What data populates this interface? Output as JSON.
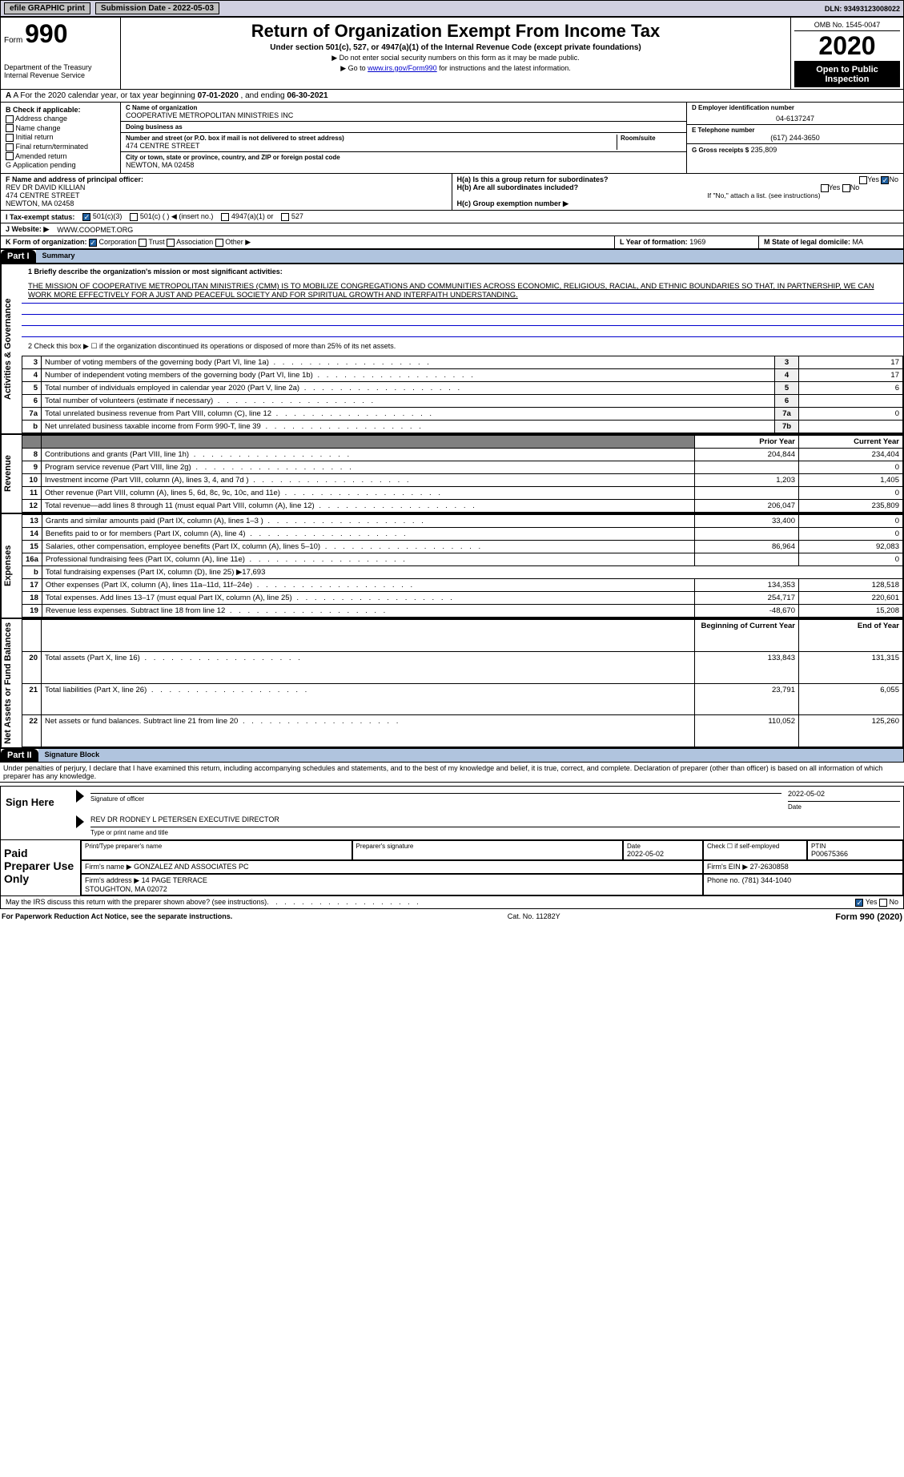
{
  "top": {
    "efile": "efile GRAPHIC print",
    "submission_label": "Submission Date - 2022-05-03",
    "dln": "DLN: 93493123008022"
  },
  "header": {
    "form_label": "Form",
    "form_no": "990",
    "dept": "Department of the Treasury\nInternal Revenue Service",
    "title": "Return of Organization Exempt From Income Tax",
    "subtitle": "Under section 501(c), 527, or 4947(a)(1) of the Internal Revenue Code (except private foundations)",
    "note1": "▶ Do not enter social security numbers on this form as it may be made public.",
    "note2_prefix": "▶ Go to ",
    "note2_link": "www.irs.gov/Form990",
    "note2_suffix": " for instructions and the latest information.",
    "omb": "OMB No. 1545-0047",
    "year": "2020",
    "open": "Open to Public Inspection"
  },
  "period": {
    "prefix": "A For the 2020 calendar year, or tax year beginning ",
    "begin": "07-01-2020",
    "mid": " , and ending ",
    "end": "06-30-2021"
  },
  "box_b": {
    "title": "B Check if applicable:",
    "items": [
      "Address change",
      "Name change",
      "Initial return",
      "Final return/terminated",
      "Amended return",
      "Application pending"
    ],
    "application_note": "G"
  },
  "box_c": {
    "name_label": "C Name of organization",
    "name": "COOPERATIVE METROPOLITAN MINISTRIES INC",
    "dba_label": "Doing business as",
    "dba": "",
    "street_label": "Number and street (or P.O. box if mail is not delivered to street address)",
    "room_label": "Room/suite",
    "street": "474 CENTRE STREET",
    "city_label": "City or town, state or province, country, and ZIP or foreign postal code",
    "city": "NEWTON, MA  02458"
  },
  "box_d": {
    "ein_label": "D Employer identification number",
    "ein": "04-6137247",
    "tel_label": "E Telephone number",
    "tel": "(617) 244-3650",
    "gross_label": "G Gross receipts $",
    "gross": "235,809"
  },
  "box_f": {
    "label": "F Name and address of principal officer:",
    "name": "REV DR DAVID KILLIAN",
    "street": "474 CENTRE STREET",
    "city": "NEWTON, MA  02458"
  },
  "box_h": {
    "a_label": "H(a)  Is this a group return for subordinates?",
    "a_yes": "Yes",
    "a_no": "No",
    "b_label": "H(b)  Are all subordinates included?",
    "b_yes": "Yes",
    "b_no": "No",
    "b_note": "If \"No,\" attach a list. (see instructions)",
    "c_label": "H(c)  Group exemption number ▶"
  },
  "box_i": {
    "label": "I   Tax-exempt status:",
    "opts": [
      "501(c)(3)",
      "501(c) (  ) ◀ (insert no.)",
      "4947(a)(1) or",
      "527"
    ]
  },
  "box_j": {
    "label": "J   Website: ▶",
    "value": "WWW.COOPMET.ORG"
  },
  "box_k": {
    "label": "K Form of organization:",
    "opts": [
      "Corporation",
      "Trust",
      "Association",
      "Other ▶"
    ]
  },
  "box_l": {
    "label": "L Year of formation:",
    "value": "1969"
  },
  "box_m": {
    "label": "M State of legal domicile:",
    "value": "MA"
  },
  "part1": {
    "tag": "Part I",
    "title": "Summary",
    "mission_label": "1  Briefly describe the organization's mission or most significant activities:",
    "mission": "THE MISSION OF COOPERATIVE METROPOLITAN MINISTRIES (CMM) IS TO MOBILIZE CONGREGATIONS AND COMMUNITIES ACROSS ECONOMIC, RELIGIOUS, RACIAL, AND ETHNIC BOUNDARIES SO THAT, IN PARTNERSHIP, WE CAN WORK MORE EFFECTIVELY FOR A JUST AND PEACEFUL SOCIETY AND FOR SPIRITUAL GROWTH AND INTERFAITH UNDERSTANDING.",
    "line2": "2   Check this box ▶ ☐ if the organization discontinued its operations or disposed of more than 25% of its net assets.",
    "sections": {
      "gov": "Activities & Governance",
      "rev": "Revenue",
      "exp": "Expenses",
      "net": "Net Assets or Fund Balances"
    },
    "rows_gov": [
      {
        "n": "3",
        "t": "Number of voting members of the governing body (Part VI, line 1a)",
        "l": "3",
        "v": "17"
      },
      {
        "n": "4",
        "t": "Number of independent voting members of the governing body (Part VI, line 1b)",
        "l": "4",
        "v": "17"
      },
      {
        "n": "5",
        "t": "Total number of individuals employed in calendar year 2020 (Part V, line 2a)",
        "l": "5",
        "v": "6"
      },
      {
        "n": "6",
        "t": "Total number of volunteers (estimate if necessary)",
        "l": "6",
        "v": ""
      },
      {
        "n": "7a",
        "t": "Total unrelated business revenue from Part VIII, column (C), line 12",
        "l": "7a",
        "v": "0"
      },
      {
        "n": "b",
        "t": "Net unrelated business taxable income from Form 990-T, line 39",
        "l": "7b",
        "v": ""
      }
    ],
    "col_hdrs": {
      "prior": "Prior Year",
      "current": "Current Year"
    },
    "rows_rev": [
      {
        "n": "8",
        "t": "Contributions and grants (Part VIII, line 1h)",
        "p": "204,844",
        "c": "234,404"
      },
      {
        "n": "9",
        "t": "Program service revenue (Part VIII, line 2g)",
        "p": "",
        "c": "0"
      },
      {
        "n": "10",
        "t": "Investment income (Part VIII, column (A), lines 3, 4, and 7d )",
        "p": "1,203",
        "c": "1,405"
      },
      {
        "n": "11",
        "t": "Other revenue (Part VIII, column (A), lines 5, 6d, 8c, 9c, 10c, and 11e)",
        "p": "",
        "c": "0"
      },
      {
        "n": "12",
        "t": "Total revenue—add lines 8 through 11 (must equal Part VIII, column (A), line 12)",
        "p": "206,047",
        "c": "235,809"
      }
    ],
    "rows_exp": [
      {
        "n": "13",
        "t": "Grants and similar amounts paid (Part IX, column (A), lines 1–3 )",
        "p": "33,400",
        "c": "0"
      },
      {
        "n": "14",
        "t": "Benefits paid to or for members (Part IX, column (A), line 4)",
        "p": "",
        "c": "0"
      },
      {
        "n": "15",
        "t": "Salaries, other compensation, employee benefits (Part IX, column (A), lines 5–10)",
        "p": "86,964",
        "c": "92,083"
      },
      {
        "n": "16a",
        "t": "Professional fundraising fees (Part IX, column (A), line 11e)",
        "p": "",
        "c": "0"
      },
      {
        "n": "b",
        "t": "Total fundraising expenses (Part IX, column (D), line 25) ▶17,693",
        "p": null,
        "c": null
      },
      {
        "n": "17",
        "t": "Other expenses (Part IX, column (A), lines 11a–11d, 11f–24e)",
        "p": "134,353",
        "c": "128,518"
      },
      {
        "n": "18",
        "t": "Total expenses. Add lines 13–17 (must equal Part IX, column (A), line 25)",
        "p": "254,717",
        "c": "220,601"
      },
      {
        "n": "19",
        "t": "Revenue less expenses. Subtract line 18 from line 12",
        "p": "-48,670",
        "c": "15,208"
      }
    ],
    "net_hdrs": {
      "begin": "Beginning of Current Year",
      "end": "End of Year"
    },
    "rows_net": [
      {
        "n": "20",
        "t": "Total assets (Part X, line 16)",
        "p": "133,843",
        "c": "131,315"
      },
      {
        "n": "21",
        "t": "Total liabilities (Part X, line 26)",
        "p": "23,791",
        "c": "6,055"
      },
      {
        "n": "22",
        "t": "Net assets or fund balances. Subtract line 21 from line 20",
        "p": "110,052",
        "c": "125,260"
      }
    ]
  },
  "part2": {
    "tag": "Part II",
    "title": "Signature Block",
    "penalty": "Under penalties of perjury, I declare that I have examined this return, including accompanying schedules and statements, and to the best of my knowledge and belief, it is true, correct, and complete. Declaration of preparer (other than officer) is based on all information of which preparer has any knowledge.",
    "sign_here": "Sign Here",
    "sig_officer": "Signature of officer",
    "sig_date": "2022-05-02",
    "date_label": "Date",
    "officer_name": "REV DR RODNEY L PETERSEN  EXECUTIVE DIRECTOR",
    "name_label": "Type or print name and title",
    "paid": "Paid Preparer Use Only",
    "prep": {
      "name_label": "Print/Type preparer's name",
      "name": "",
      "sig_label": "Preparer's signature",
      "date_label": "Date",
      "date": "2022-05-02",
      "self_label": "Check ☐ if self-employed",
      "ptin_label": "PTIN",
      "ptin": "P00675366",
      "firm_label": "Firm's name     ▶",
      "firm": "GONZALEZ AND ASSOCIATES PC",
      "ein_label": "Firm's EIN ▶",
      "ein": "27-2630858",
      "addr_label": "Firm's address ▶",
      "addr": "14 PAGE TERRACE\nSTOUGHTON, MA  02072",
      "phone_label": "Phone no.",
      "phone": "(781) 344-1040"
    },
    "discuss": "May the IRS discuss this return with the preparer shown above? (see instructions)",
    "yes": "Yes",
    "no": "No"
  },
  "footer": {
    "left": "For Paperwork Reduction Act Notice, see the separate instructions.",
    "cat": "Cat. No. 11282Y",
    "right": "Form 990 (2020)"
  },
  "colors": {
    "header_bg": "#d0d0e0",
    "part_title_bg": "#b0c4de",
    "link": "#0000cc",
    "check_on": "#2060a0"
  }
}
